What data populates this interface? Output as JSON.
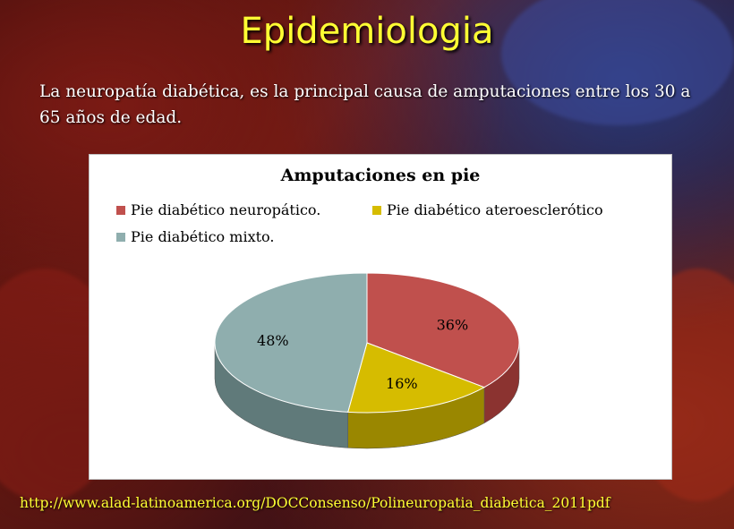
{
  "slide": {
    "title": "Epidemiologia",
    "intro": "La neuropatía diabética, es la principal causa de amputaciones entre los 30 a 65 años de edad.",
    "source": "http://www.alad-latinoamerica.org/DOCConsenso/Polineuropatia_diabetica_2011pdf"
  },
  "chart_data": {
    "type": "pie",
    "title": "Amputaciones en pie",
    "legend_position": "top",
    "slices": [
      {
        "name": "Pie diabético neuropático.",
        "value": 36,
        "label": "36%",
        "color": "#c0504d",
        "side": "#8b3330"
      },
      {
        "name": "Pie diabético ateroesclerótico",
        "value": 16,
        "label": "16%",
        "color": "#d6bc00",
        "side": "#9a8700"
      },
      {
        "name": "Pie diabético mixto.",
        "value": 48,
        "label": "48%",
        "color": "#8faeae",
        "side": "#607a7a"
      }
    ]
  }
}
